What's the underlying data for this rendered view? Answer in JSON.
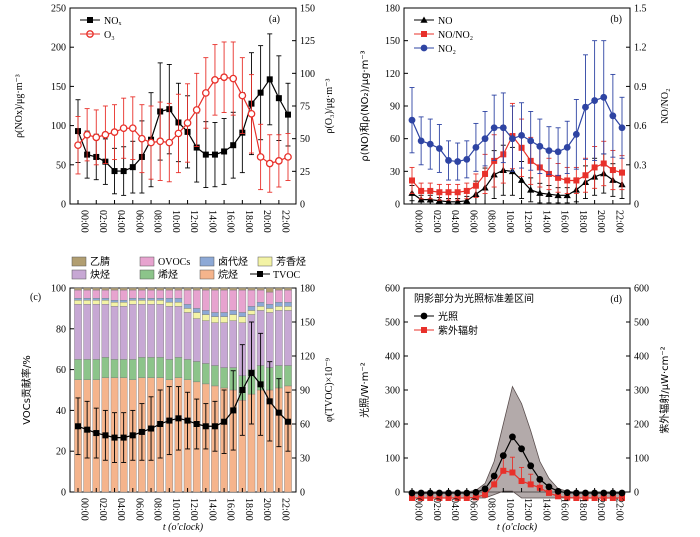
{
  "chart_data": [
    {
      "panel": "(a)",
      "type": "line",
      "x": [
        "00:00",
        "01:00",
        "02:00",
        "03:00",
        "04:00",
        "05:00",
        "06:00",
        "07:00",
        "08:00",
        "09:00",
        "10:00",
        "11:00",
        "12:00",
        "13:00",
        "14:00",
        "15:00",
        "16:00",
        "17:00",
        "18:00",
        "19:00",
        "20:00",
        "21:00",
        "22:00",
        "23:00"
      ],
      "xticks": [
        "00:00",
        "02:00",
        "04:00",
        "06:00",
        "08:00",
        "10:00",
        "12:00",
        "14:00",
        "16:00",
        "18:00",
        "20:00",
        "22:00"
      ],
      "ylabel": "ρ(NOx)/μg·m⁻³",
      "ylabel_right": "ρ(O₃)/μg·m⁻³",
      "ylim": [
        0,
        250
      ],
      "ylim_right": [
        0,
        150
      ],
      "yticks": [
        0,
        50,
        100,
        150,
        200,
        250
      ],
      "yticks_right": [
        0,
        25,
        50,
        75,
        100,
        125,
        150
      ],
      "series": [
        {
          "name": "NOₓ",
          "axis": "left",
          "color": "#000000",
          "marker": "square",
          "values": [
            93,
            63,
            60,
            54,
            42,
            42,
            47,
            60,
            82,
            118,
            121,
            104,
            92,
            72,
            63,
            63,
            67,
            75,
            91,
            128,
            142,
            159,
            135,
            114
          ],
          "errors": [
            40,
            30,
            29,
            29,
            29,
            31,
            33,
            46,
            60,
            62,
            57,
            50,
            46,
            44,
            42,
            41,
            42,
            42,
            51,
            65,
            60,
            58,
            54,
            40
          ]
        },
        {
          "name": "O₃",
          "axis": "right",
          "color": "#e8302a",
          "marker": "circle",
          "values": [
            45,
            53,
            51,
            53,
            55,
            58,
            58,
            50,
            47,
            48,
            47,
            54,
            62,
            72,
            85,
            95,
            97,
            96,
            83,
            69,
            36,
            31,
            33,
            36
          ],
          "errors": [
            22,
            20,
            21,
            22,
            21,
            23,
            24,
            26,
            28,
            30,
            30,
            30,
            30,
            28,
            27,
            27,
            27,
            28,
            29,
            30,
            25,
            22,
            20,
            18
          ]
        }
      ]
    },
    {
      "panel": "(b)",
      "type": "line",
      "x": [
        "00:00",
        "01:00",
        "02:00",
        "03:00",
        "04:00",
        "05:00",
        "06:00",
        "07:00",
        "08:00",
        "09:00",
        "10:00",
        "11:00",
        "12:00",
        "13:00",
        "14:00",
        "15:00",
        "16:00",
        "17:00",
        "18:00",
        "19:00",
        "20:00",
        "21:00",
        "22:00",
        "23:00"
      ],
      "xticks": [
        "00:00",
        "02:00",
        "04:00",
        "06:00",
        "08:00",
        "10:00",
        "12:00",
        "14:00",
        "16:00",
        "18:00",
        "20:00",
        "22:00"
      ],
      "ylabel": "ρ(NO)和ρ(NO₂)/μg·m⁻³",
      "ylabel_right": "NO/NO₂",
      "ylim": [
        0,
        180
      ],
      "ylim_right": [
        0,
        1.5
      ],
      "yticks": [
        0,
        30,
        60,
        90,
        120,
        150,
        180
      ],
      "yticks_right": [
        0,
        0.3,
        0.6,
        0.9,
        1.2,
        1.5
      ],
      "series": [
        {
          "name": "NO",
          "axis": "left",
          "color": "#000000",
          "marker": "triangle",
          "values": [
            10,
            4,
            4,
            3,
            2,
            2,
            3,
            9,
            15,
            27,
            31,
            30,
            22,
            13,
            10,
            9,
            8,
            8,
            13,
            20,
            25,
            28,
            22,
            18
          ],
          "errors": [
            7,
            4,
            4,
            3,
            3,
            3,
            4,
            12,
            18,
            22,
            23,
            22,
            17,
            11,
            9,
            8,
            7,
            7,
            11,
            15,
            17,
            18,
            15,
            13
          ]
        },
        {
          "name": "NO/NO₂",
          "axis": "right",
          "color": "#e8302a",
          "marker": "square",
          "values": [
            0.18,
            0.1,
            0.1,
            0.09,
            0.09,
            0.09,
            0.1,
            0.14,
            0.23,
            0.33,
            0.38,
            0.52,
            0.43,
            0.33,
            0.28,
            0.23,
            0.2,
            0.18,
            0.18,
            0.22,
            0.28,
            0.31,
            0.26,
            0.24
          ],
          "errors": [
            0.1,
            0.06,
            0.06,
            0.06,
            0.06,
            0.06,
            0.06,
            0.09,
            0.15,
            0.2,
            0.22,
            0.25,
            0.22,
            0.18,
            0.15,
            0.12,
            0.11,
            0.1,
            0.1,
            0.13,
            0.16,
            0.17,
            0.15,
            0.13
          ]
        },
        {
          "name": "NO₂",
          "axis": "left",
          "color": "#2e44a3",
          "marker": "circle",
          "values": [
            77,
            58,
            55,
            51,
            40,
            39,
            41,
            52,
            60,
            70,
            70,
            60,
            63,
            58,
            53,
            49,
            48,
            52,
            64,
            89,
            95,
            98,
            81,
            70
          ],
          "errors": [
            30,
            22,
            23,
            22,
            18,
            17,
            17,
            22,
            25,
            30,
            32,
            30,
            30,
            27,
            25,
            22,
            22,
            24,
            32,
            48,
            55,
            52,
            38,
            28
          ]
        }
      ]
    },
    {
      "panel": "(c)",
      "type": "bar",
      "stacked": true,
      "categories": [
        "00:00",
        "01:00",
        "02:00",
        "03:00",
        "04:00",
        "05:00",
        "06:00",
        "07:00",
        "08:00",
        "09:00",
        "10:00",
        "11:00",
        "12:00",
        "13:00",
        "14:00",
        "15:00",
        "16:00",
        "17:00",
        "18:00",
        "19:00",
        "20:00",
        "21:00",
        "22:00",
        "23:00"
      ],
      "xticks": [
        "00:00",
        "02:00",
        "04:00",
        "06:00",
        "08:00",
        "10:00",
        "12:00",
        "14:00",
        "16:00",
        "18:00",
        "20:00",
        "22:00"
      ],
      "xlabel": "t (o'clock)",
      "ylabel": "VOCs贡献率/%",
      "ylabel_right": "φ(TVOC)×10⁻⁹",
      "ylim": [
        0,
        100
      ],
      "ylim_right": [
        0,
        180
      ],
      "yticks": [
        0,
        20,
        40,
        60,
        80,
        100
      ],
      "yticks_right": [
        0,
        30,
        60,
        90,
        120,
        150,
        180
      ],
      "series": [
        {
          "name": "烷烃",
          "color": "#f5b48c",
          "values": [
            55,
            55,
            55,
            56,
            56,
            56,
            55,
            56,
            56,
            56,
            55,
            56,
            55,
            54,
            53,
            52,
            51,
            50,
            45,
            48,
            50,
            50,
            51,
            52
          ]
        },
        {
          "name": "烯烃",
          "color": "#8cc48a",
          "values": [
            10,
            10,
            10,
            10,
            9,
            9,
            10,
            10,
            10,
            10,
            10,
            10,
            10,
            10,
            10,
            10,
            10,
            11,
            12,
            12,
            12,
            11,
            11,
            10
          ]
        },
        {
          "name": "炔烃",
          "color": "#c7a8d4",
          "values": [
            27,
            27,
            27,
            26,
            26,
            26,
            27,
            26,
            26,
            26,
            26,
            25,
            23,
            21,
            21,
            21,
            22,
            23,
            26,
            27,
            27,
            27,
            27,
            27
          ]
        },
        {
          "name": "芳香烃",
          "color": "#f3f3a5",
          "values": [
            2,
            2,
            2,
            2,
            2,
            2,
            2,
            2,
            2,
            2,
            2,
            2,
            2,
            3,
            3,
            3,
            3,
            3,
            3,
            2,
            2,
            2,
            2,
            2
          ]
        },
        {
          "name": "卤代烃",
          "color": "#8da9d6",
          "values": [
            1,
            1,
            1,
            1,
            1,
            1,
            1,
            1,
            1,
            1,
            2,
            2,
            2,
            2,
            2,
            2,
            2,
            2,
            2,
            2,
            2,
            2,
            2,
            2
          ]
        },
        {
          "name": "OVOCs",
          "color": "#e7a3cf",
          "values": [
            4,
            4,
            4,
            4,
            5,
            5,
            4,
            4,
            4,
            4,
            4,
            4,
            7,
            9,
            10,
            11,
            11,
            10,
            11,
            8,
            6,
            6,
            6,
            6
          ]
        },
        {
          "name": "乙腈",
          "color": "#b19e71",
          "values": [
            1,
            1,
            1,
            1,
            1,
            1,
            1,
            1,
            1,
            1,
            1,
            1,
            1,
            1,
            1,
            1,
            1,
            1,
            1,
            1,
            1,
            2,
            1,
            1
          ]
        }
      ],
      "line": {
        "name": "TVOC",
        "axis": "right",
        "color": "#000000",
        "values": [
          58,
          55,
          52,
          50,
          48,
          48,
          50,
          53,
          56,
          60,
          63,
          65,
          63,
          60,
          58,
          58,
          62,
          72,
          90,
          105,
          95,
          80,
          70,
          62
        ],
        "errors": [
          25,
          25,
          22,
          22,
          22,
          22,
          22,
          25,
          28,
          30,
          30,
          28,
          25,
          22,
          20,
          22,
          28,
          35,
          40,
          45,
          45,
          35,
          30,
          26
        ]
      }
    },
    {
      "panel": "(d)",
      "type": "line",
      "x": [
        "00:00",
        "01:00",
        "02:00",
        "03:00",
        "04:00",
        "05:00",
        "06:00",
        "07:00",
        "08:00",
        "09:00",
        "10:00",
        "11:00",
        "12:00",
        "13:00",
        "14:00",
        "15:00",
        "16:00",
        "17:00",
        "18:00",
        "19:00",
        "20:00",
        "21:00",
        "22:00",
        "23:00"
      ],
      "xticks": [
        "00:00",
        "02:00",
        "04:00",
        "06:00",
        "08:00",
        "10:00",
        "12:00",
        "14:00",
        "16:00",
        "18:00",
        "20:00",
        "22:00"
      ],
      "xlabel": "t (o'clock)",
      "ylabel": "光照/W·m⁻²",
      "ylabel_right": "紫外辐射/μW·cm⁻²",
      "ylim": [
        0,
        600
      ],
      "ylim_right": [
        0,
        600
      ],
      "yticks": [
        0,
        100,
        200,
        300,
        400,
        500,
        600
      ],
      "yticks_right": [
        0,
        100,
        200,
        300,
        400,
        500,
        600
      ],
      "annotation": "阴影部分为光照标准差区间",
      "series": [
        {
          "name": "光照",
          "axis": "left",
          "color": "#000000",
          "marker": "circle",
          "values": [
            0,
            0,
            0,
            0,
            0,
            0,
            0,
            2,
            12,
            50,
            110,
            165,
            130,
            80,
            40,
            18,
            5,
            1,
            0,
            0,
            0,
            0,
            0,
            0
          ],
          "band": [
            0,
            0,
            0,
            0,
            0,
            0,
            0,
            5,
            25,
            90,
            200,
            310,
            260,
            180,
            90,
            40,
            10,
            2,
            0,
            0,
            0,
            0,
            0,
            0
          ]
        },
        {
          "name": "紫外辐射",
          "axis": "right",
          "color": "#e8302a",
          "marker": "square",
          "values": [
            0,
            0,
            0,
            0,
            0,
            0,
            0,
            2,
            10,
            40,
            80,
            75,
            50,
            40,
            30,
            15,
            5,
            1,
            0,
            0,
            0,
            0,
            0,
            0
          ],
          "errors": [
            0,
            0,
            0,
            0,
            0,
            0,
            0,
            2,
            10,
            30,
            50,
            45,
            40,
            30,
            20,
            10,
            4,
            1,
            0,
            0,
            0,
            0,
            0,
            0
          ]
        }
      ]
    }
  ],
  "labels": {
    "panel_a": "(a)",
    "panel_b": "(b)",
    "panel_c": "(c)",
    "panel_d": "(d)",
    "xlabel_c": "t (o'clock)",
    "xlabel_d": "t (o'clock)",
    "ylab_a_left": "ρ(NOx)/μg·m⁻³",
    "ylab_a_right": "ρ(O₃)/μg·m⁻³",
    "ylab_b_left": "ρ(NO)和ρ(NO₂)/μg·m⁻³",
    "ylab_b_right": "NO/NO₂",
    "ylab_c_left": "VOCs贡献率/%",
    "ylab_c_right": "φ(TVOC)×10⁻⁹",
    "ylab_d_left": "光照/W·m⁻²",
    "ylab_d_right": "紫外辐射/μW·cm⁻²",
    "leg_a": [
      "NOₓ",
      "O₃"
    ],
    "leg_b": [
      "NO",
      "NO/NO₂",
      "NO₂"
    ],
    "leg_c": [
      "乙腈",
      "OVOCs",
      "卤代烃",
      "芳香烃",
      "炔烃",
      "烯烃",
      "烷烃",
      "TVOC"
    ],
    "leg_d_note": "阴影部分为光照标准差区间",
    "leg_d": [
      "光照",
      "紫外辐射"
    ]
  }
}
